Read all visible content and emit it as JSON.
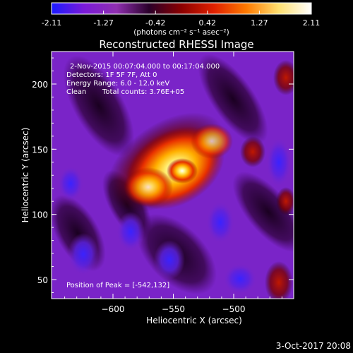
{
  "chart_data": {
    "type": "heatmap",
    "title": "Reconstructed RHESSI Image",
    "xlabel": "Heliocentric X (arcsec)",
    "ylabel": "Heliocentric Y (arcsec)",
    "xlim": [
      -642,
      -549
    ],
    "ylim": [
      35,
      224
    ],
    "xticks": [
      -600,
      -550,
      -500
    ],
    "yticks": [
      50,
      100,
      150,
      200
    ],
    "colorbar": {
      "min": -2.11,
      "max": 2.11,
      "ticks": [
        "-2.11",
        "-1.27",
        "-0.42",
        "0.42",
        "1.27",
        "2.11"
      ],
      "unit_label": "(photons cm⁻² s⁻¹ asec⁻²)",
      "colors": [
        "#1a1aff",
        "#7a1ad8",
        "#8f2fb0",
        "#2a002a",
        "#8b0000",
        "#e02000",
        "#ff7a00",
        "#ffe070",
        "#ffffff"
      ]
    },
    "annotations": {
      "time": "2-Nov-2015 00:07:04.000 to 00:17:04.000",
      "detectors": "Detectors: 1F 5F 7F, Att 0",
      "energy": "Energy Range: 6.0 - 12.0 keV",
      "method": "Clean",
      "counts": "Total counts: 3.76E+05",
      "peak": "Position of Peak = [-542,132]"
    },
    "peak": {
      "x": -542,
      "y": 132
    },
    "footer": "3-Oct-2017 20:08"
  },
  "colors": {
    "background": "#000000",
    "text": "#ffffff"
  }
}
